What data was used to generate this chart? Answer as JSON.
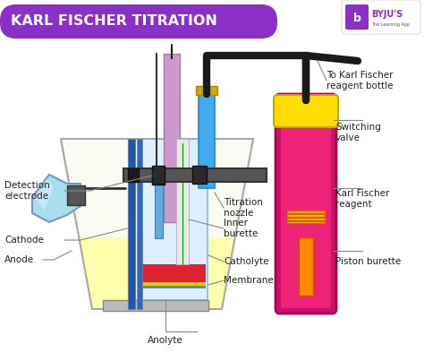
{
  "title": "KARL FISCHER TITRATION",
  "title_bg": "#8B2FC9",
  "title_color": "#FFFFFF",
  "bg_color": "#FFFFFF",
  "labels": {
    "detection_electrode": "Detection\nelectrode",
    "titration_nozzle": "Titration\nnozzle",
    "inner_burette": "Inner\nburette",
    "catholyte": "Catholyte",
    "membrane": "Membrane",
    "anolyte": "Anolyte",
    "cathode": "Cathode",
    "anode": "Anode",
    "to_kf_bottle": "To Karl Fischer\nreagent bottle",
    "switching_valve": "Switching\nvalve",
    "kf_reagent": "Karl Fischer\nreagent",
    "piston_burette": "Piston burette"
  },
  "colors": {
    "beaker_fill": "#FAFAD2",
    "beaker_edge": "#AAAAAA",
    "inner_vessel_fill": "#E0F0FF",
    "inner_vessel_edge": "#88BBDD",
    "anolyte_fill": "#FFFFAA",
    "catholyte_red": "#DD2233",
    "membrane_yellow": "#DDCC00",
    "cathode_blue_dark": "#2255AA",
    "cathode_blue_light": "#4488CC",
    "det_electrode_blue": "#66AADD",
    "det_connector_dark": "#333333",
    "pink_tube": "#CC88BB",
    "gray_clamp": "#555555",
    "nozzle_blue": "#44AAEE",
    "nozzle_connector": "#CCAA00",
    "inner_burette_gray": "#CCCCCC",
    "anode_light_blue": "#88CCEE",
    "anode_connector": "#666666",
    "anode_bottom": "#AAAAAA",
    "tube_black": "#1A1A1A",
    "kf_reagent_magenta": "#CC1166",
    "kf_bottle_pink": "#EE4499",
    "yellow_cap": "#FFDD00",
    "orange_piston": "#FF8800",
    "piston_lines": "#CC6600",
    "label_color": "#222222",
    "line_color": "#888888"
  }
}
